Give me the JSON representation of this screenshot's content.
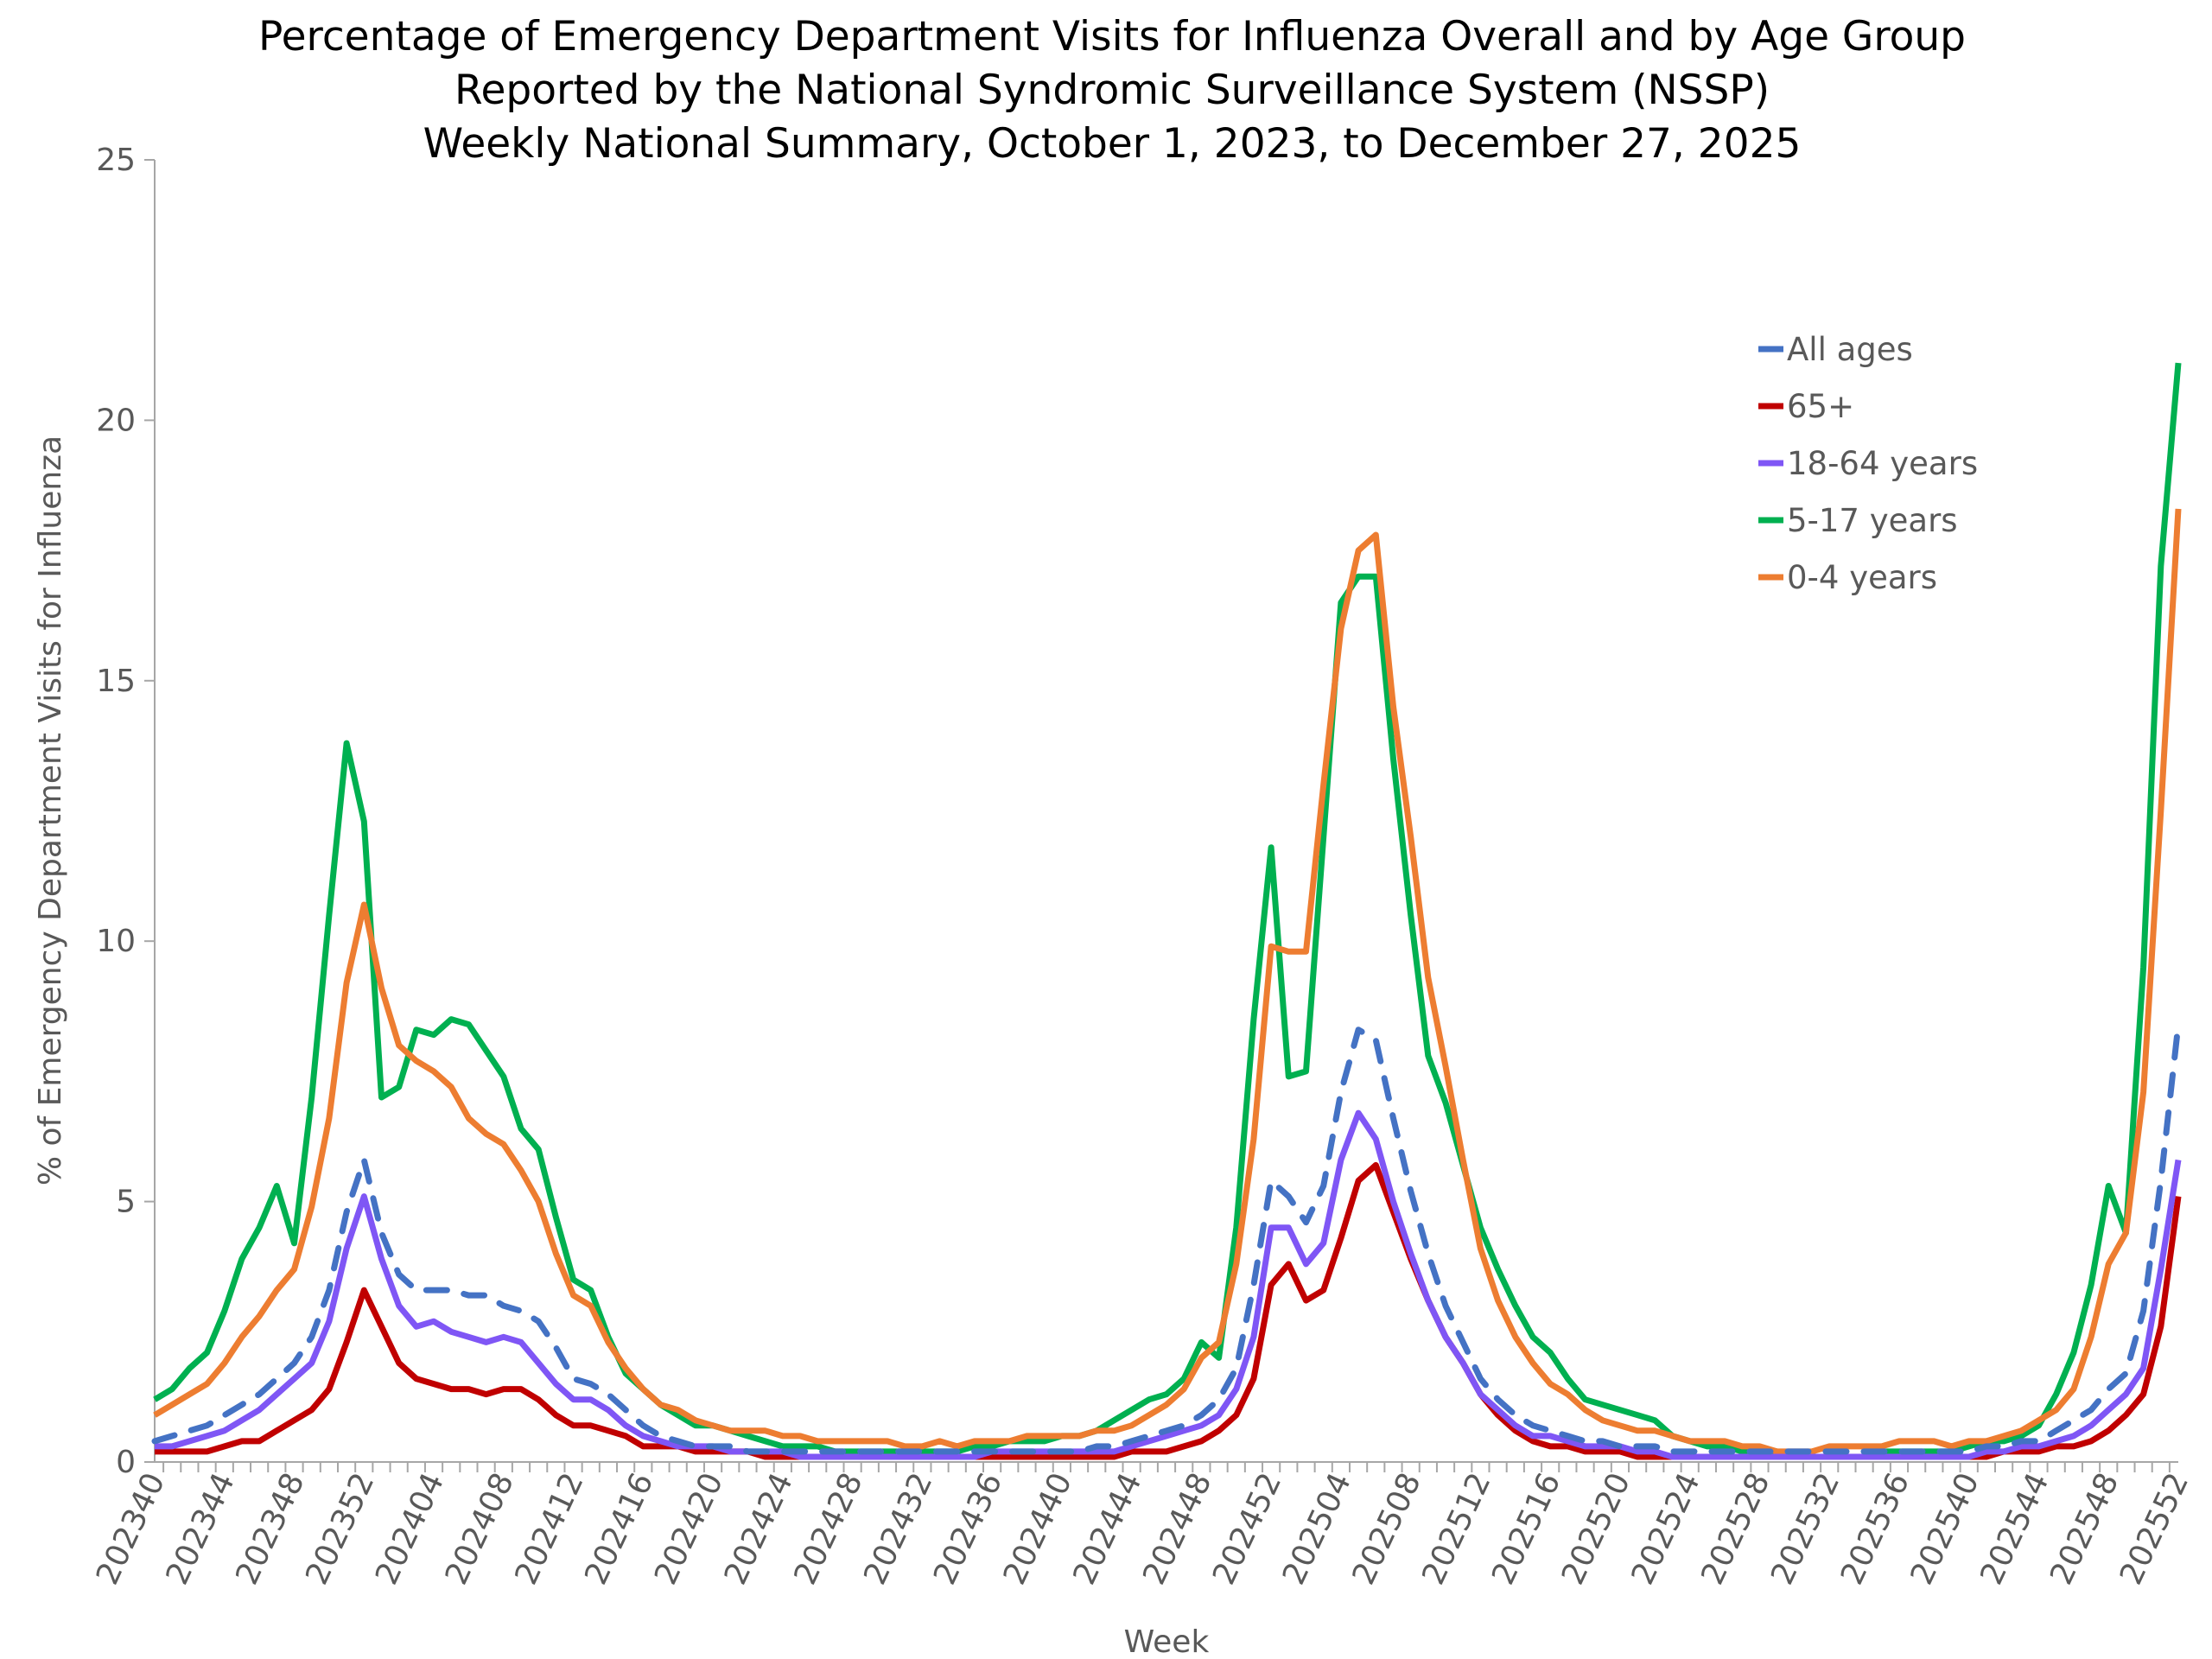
{
  "chart_data": {
    "type": "line",
    "title": [
      "Percentage of Emergency Department Visits for Influenza Overall and by Age Group",
      "Reported by the National Syndromic Surveillance System (NSSP)",
      "Weekly National Summary, October 1, 2023, to  December 27, 2025"
    ],
    "xlabel": "Week",
    "ylabel": "% of Emergency Department Visits for Influenza",
    "ylim": [
      0,
      25
    ],
    "yticks": [
      "0",
      "5",
      "10",
      "15",
      "20",
      "25"
    ],
    "x_start_label": "202340",
    "xtick_labels": [
      "202340",
      "202344",
      "202348",
      "202352",
      "202404",
      "202408",
      "202412",
      "202416",
      "202420",
      "202424",
      "202428",
      "202432",
      "202436",
      "202440",
      "202444",
      "202448",
      "202452",
      "202504",
      "202508",
      "202512",
      "202516",
      "202520",
      "202524",
      "202528",
      "202532",
      "202536",
      "202540",
      "202544",
      "202548",
      "202552"
    ],
    "legend_position": "top-right",
    "series": [
      {
        "name": "All ages",
        "color": "#4472C4",
        "dashed": true,
        "values": [
          0.4,
          0.5,
          0.6,
          0.7,
          0.9,
          1.1,
          1.3,
          1.6,
          1.9,
          2.4,
          3.3,
          4.8,
          5.8,
          4.4,
          3.6,
          3.3,
          3.3,
          3.3,
          3.2,
          3.2,
          3.0,
          2.9,
          2.7,
          2.2,
          1.6,
          1.5,
          1.3,
          1.0,
          0.7,
          0.5,
          0.4,
          0.3,
          0.3,
          0.3,
          0.2,
          0.2,
          0.2,
          0.2,
          0.2,
          0.2,
          0.2,
          0.2,
          0.2,
          0.2,
          0.2,
          0.2,
          0.2,
          0.2,
          0.2,
          0.2,
          0.2,
          0.2,
          0.2,
          0.2,
          0.3,
          0.3,
          0.4,
          0.5,
          0.6,
          0.7,
          0.9,
          1.2,
          1.8,
          3.4,
          5.4,
          5.1,
          4.6,
          5.3,
          7.1,
          8.3,
          8.1,
          6.6,
          5.2,
          4.0,
          3.0,
          2.3,
          1.6,
          1.2,
          0.9,
          0.7,
          0.6,
          0.5,
          0.4,
          0.4,
          0.3,
          0.3,
          0.3,
          0.2,
          0.2,
          0.2,
          0.2,
          0.2,
          0.2,
          0.2,
          0.2,
          0.2,
          0.2,
          0.2,
          0.2,
          0.2,
          0.2,
          0.2,
          0.2,
          0.2,
          0.2,
          0.3,
          0.3,
          0.4,
          0.4,
          0.6,
          0.8,
          1.0,
          1.4,
          1.7,
          2.9,
          5.4,
          8.4
        ]
      },
      {
        "name": "65+",
        "color": "#C00000",
        "dashed": false,
        "values": [
          0.2,
          0.2,
          0.2,
          0.2,
          0.3,
          0.4,
          0.4,
          0.6,
          0.8,
          1.0,
          1.4,
          2.3,
          3.3,
          2.6,
          1.9,
          1.6,
          1.5,
          1.4,
          1.4,
          1.3,
          1.4,
          1.4,
          1.2,
          0.9,
          0.7,
          0.7,
          0.6,
          0.5,
          0.3,
          0.3,
          0.3,
          0.2,
          0.2,
          0.2,
          0.2,
          0.1,
          0.1,
          0.1,
          0.1,
          0.1,
          0.1,
          0.1,
          0.1,
          0.1,
          0.1,
          0.1,
          0.1,
          0.1,
          0.1,
          0.1,
          0.1,
          0.1,
          0.1,
          0.1,
          0.1,
          0.1,
          0.2,
          0.2,
          0.2,
          0.3,
          0.4,
          0.6,
          0.9,
          1.6,
          3.4,
          3.8,
          3.1,
          3.3,
          4.3,
          5.4,
          5.7,
          4.8,
          3.9,
          3.1,
          2.4,
          1.9,
          1.3,
          0.9,
          0.6,
          0.4,
          0.3,
          0.3,
          0.2,
          0.2,
          0.2,
          0.1,
          0.1,
          0.1,
          0.1,
          0.1,
          0.1,
          0.1,
          0.1,
          0.1,
          0.1,
          0.1,
          0.1,
          0.1,
          0.1,
          0.1,
          0.1,
          0.1,
          0.1,
          0.1,
          0.1,
          0.1,
          0.2,
          0.2,
          0.2,
          0.3,
          0.3,
          0.4,
          0.6,
          0.9,
          1.3,
          2.6,
          5.1
        ]
      },
      {
        "name": "18-64 years",
        "color": "#7F56F5",
        "dashed": false,
        "values": [
          0.3,
          0.3,
          0.4,
          0.5,
          0.6,
          0.8,
          1.0,
          1.3,
          1.6,
          1.9,
          2.7,
          4.1,
          5.1,
          3.9,
          3.0,
          2.6,
          2.7,
          2.5,
          2.4,
          2.3,
          2.4,
          2.3,
          1.9,
          1.5,
          1.2,
          1.2,
          1.0,
          0.7,
          0.5,
          0.4,
          0.3,
          0.3,
          0.3,
          0.2,
          0.2,
          0.2,
          0.2,
          0.1,
          0.1,
          0.1,
          0.1,
          0.1,
          0.1,
          0.1,
          0.1,
          0.1,
          0.1,
          0.1,
          0.2,
          0.2,
          0.2,
          0.2,
          0.2,
          0.2,
          0.2,
          0.2,
          0.3,
          0.4,
          0.5,
          0.6,
          0.7,
          0.9,
          1.4,
          2.4,
          4.5,
          4.5,
          3.8,
          4.2,
          5.8,
          6.7,
          6.2,
          5.0,
          4.0,
          3.1,
          2.4,
          1.9,
          1.3,
          1.0,
          0.7,
          0.5,
          0.5,
          0.4,
          0.3,
          0.3,
          0.3,
          0.2,
          0.2,
          0.1,
          0.1,
          0.1,
          0.1,
          0.1,
          0.1,
          0.1,
          0.1,
          0.1,
          0.1,
          0.1,
          0.1,
          0.1,
          0.1,
          0.1,
          0.1,
          0.1,
          0.1,
          0.2,
          0.2,
          0.3,
          0.3,
          0.4,
          0.5,
          0.7,
          1.0,
          1.3,
          1.8,
          3.7,
          5.8
        ]
      },
      {
        "name": "5-17 years",
        "color": "#00B050",
        "dashed": false,
        "values": [
          1.2,
          1.4,
          1.8,
          2.1,
          2.9,
          3.9,
          4.5,
          5.3,
          4.2,
          7.0,
          10.5,
          13.8,
          12.3,
          7.0,
          7.2,
          8.3,
          8.2,
          8.5,
          8.4,
          7.9,
          7.4,
          6.4,
          6.0,
          4.7,
          3.5,
          3.3,
          2.4,
          1.7,
          1.4,
          1.1,
          0.9,
          0.7,
          0.7,
          0.6,
          0.5,
          0.4,
          0.3,
          0.3,
          0.3,
          0.2,
          0.2,
          0.2,
          0.2,
          0.2,
          0.2,
          0.2,
          0.2,
          0.3,
          0.3,
          0.4,
          0.4,
          0.4,
          0.5,
          0.5,
          0.6,
          0.8,
          1.0,
          1.2,
          1.3,
          1.6,
          2.3,
          2.0,
          4.5,
          8.5,
          11.8,
          7.4,
          7.5,
          12.0,
          16.5,
          17.0,
          17.0,
          13.5,
          10.5,
          7.8,
          6.9,
          5.7,
          4.5,
          3.7,
          3.0,
          2.4,
          2.1,
          1.6,
          1.2,
          1.1,
          1.0,
          0.9,
          0.8,
          0.5,
          0.4,
          0.3,
          0.3,
          0.2,
          0.2,
          0.2,
          0.1,
          0.1,
          0.1,
          0.1,
          0.1,
          0.2,
          0.2,
          0.2,
          0.2,
          0.2,
          0.3,
          0.4,
          0.4,
          0.5,
          0.7,
          1.3,
          2.1,
          3.4,
          5.3,
          4.4,
          9.5,
          17.2,
          21.1
        ]
      },
      {
        "name": "0-4 years",
        "color": "#ED7D31",
        "dashed": false,
        "values": [
          0.9,
          1.1,
          1.3,
          1.5,
          1.9,
          2.4,
          2.8,
          3.3,
          3.7,
          4.9,
          6.6,
          9.2,
          10.7,
          9.1,
          8.0,
          7.7,
          7.5,
          7.2,
          6.6,
          6.3,
          6.1,
          5.6,
          5.0,
          4.0,
          3.2,
          3.0,
          2.3,
          1.8,
          1.4,
          1.1,
          1.0,
          0.8,
          0.7,
          0.6,
          0.6,
          0.6,
          0.5,
          0.5,
          0.4,
          0.4,
          0.4,
          0.4,
          0.4,
          0.3,
          0.3,
          0.4,
          0.3,
          0.4,
          0.4,
          0.4,
          0.5,
          0.5,
          0.5,
          0.5,
          0.6,
          0.6,
          0.7,
          0.9,
          1.1,
          1.4,
          2.0,
          2.3,
          3.8,
          6.2,
          9.9,
          9.8,
          9.8,
          13.0,
          16.0,
          17.5,
          17.8,
          14.5,
          12.0,
          9.3,
          7.6,
          5.8,
          4.1,
          3.1,
          2.4,
          1.9,
          1.5,
          1.3,
          1.0,
          0.8,
          0.7,
          0.6,
          0.6,
          0.5,
          0.4,
          0.4,
          0.4,
          0.3,
          0.3,
          0.2,
          0.2,
          0.2,
          0.3,
          0.3,
          0.3,
          0.3,
          0.4,
          0.4,
          0.4,
          0.3,
          0.4,
          0.4,
          0.5,
          0.6,
          0.8,
          1.0,
          1.4,
          2.4,
          3.8,
          4.4,
          7.1,
          12.5,
          18.3
        ]
      }
    ]
  }
}
